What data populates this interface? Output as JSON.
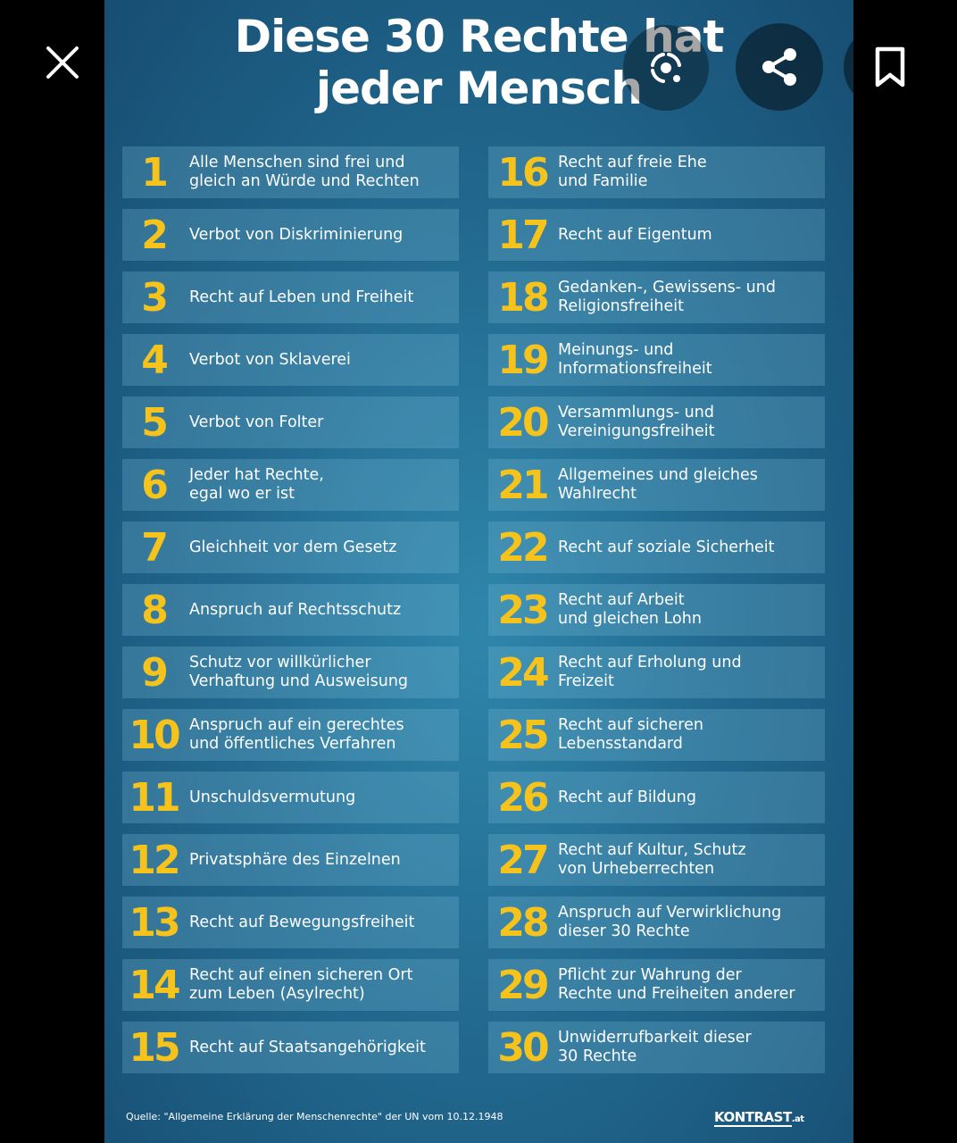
{
  "title_line1": "Diese 30 Rechte hat",
  "title_line2": "jeder Mensch",
  "rights": [
    {
      "n": "1",
      "t": "Alle Menschen sind frei und\ngleich an Würde und Rechten"
    },
    {
      "n": "2",
      "t": "Verbot von Diskriminierung"
    },
    {
      "n": "3",
      "t": "Recht auf Leben und Freiheit"
    },
    {
      "n": "4",
      "t": "Verbot von Sklaverei"
    },
    {
      "n": "5",
      "t": "Verbot von Folter"
    },
    {
      "n": "6",
      "t": "Jeder hat Rechte,\negal wo er ist"
    },
    {
      "n": "7",
      "t": "Gleichheit vor dem Gesetz"
    },
    {
      "n": "8",
      "t": "Anspruch auf Rechtsschutz"
    },
    {
      "n": "9",
      "t": "Schutz vor willkürlicher\nVerhaftung und Ausweisung"
    },
    {
      "n": "10",
      "t": "Anspruch auf ein gerechtes\nund öffentliches Verfahren"
    },
    {
      "n": "11",
      "t": "Unschuldsvermutung"
    },
    {
      "n": "12",
      "t": "Privatsphäre des Einzelnen"
    },
    {
      "n": "13",
      "t": "Recht auf Bewegungsfreiheit"
    },
    {
      "n": "14",
      "t": "Recht auf einen sicheren Ort\nzum Leben (Asylrecht)"
    },
    {
      "n": "15",
      "t": "Recht auf Staatsangehörigkeit"
    },
    {
      "n": "16",
      "t": "Recht auf freie Ehe\nund Familie"
    },
    {
      "n": "17",
      "t": "Recht auf Eigentum"
    },
    {
      "n": "18",
      "t": "Gedanken-, Gewissens- und\nReligionsfreiheit"
    },
    {
      "n": "19",
      "t": "Meinungs- und\nInformationsfreiheit"
    },
    {
      "n": "20",
      "t": "Versammlungs- und\nVereinigungsfreiheit"
    },
    {
      "n": "21",
      "t": "Allgemeines und gleiches\nWahlrecht"
    },
    {
      "n": "22",
      "t": "Recht auf soziale Sicherheit"
    },
    {
      "n": "23",
      "t": "Recht auf Arbeit\nund gleichen Lohn"
    },
    {
      "n": "24",
      "t": "Recht auf Erholung und\nFreizeit"
    },
    {
      "n": "25",
      "t": "Recht auf sicheren\nLebensstandard"
    },
    {
      "n": "26",
      "t": "Recht auf Bildung"
    },
    {
      "n": "27",
      "t": "Recht auf Kultur, Schutz\nvon Urheberrechten"
    },
    {
      "n": "28",
      "t": "Anspruch auf Verwirklichung\ndieser 30 Rechte"
    },
    {
      "n": "29",
      "t": "Pflicht zur Wahrung der\nRechte und Freiheiten anderer"
    },
    {
      "n": "30",
      "t": "Unwiderrufbarkeit dieser\n30 Rechte"
    }
  ],
  "footer": {
    "source": "Quelle: \"Allgemeine Erklärung der Menschenrechte\" der UN vom 10.12.1948",
    "logo_main": "KONTRAST",
    "logo_domain": ".at"
  },
  "icons": {
    "close": "close-icon",
    "lens": "lens-search-icon",
    "share": "share-icon",
    "save": "bookmark-icon"
  },
  "colors": {
    "number": "#f5c31c",
    "background": "#22698f"
  }
}
